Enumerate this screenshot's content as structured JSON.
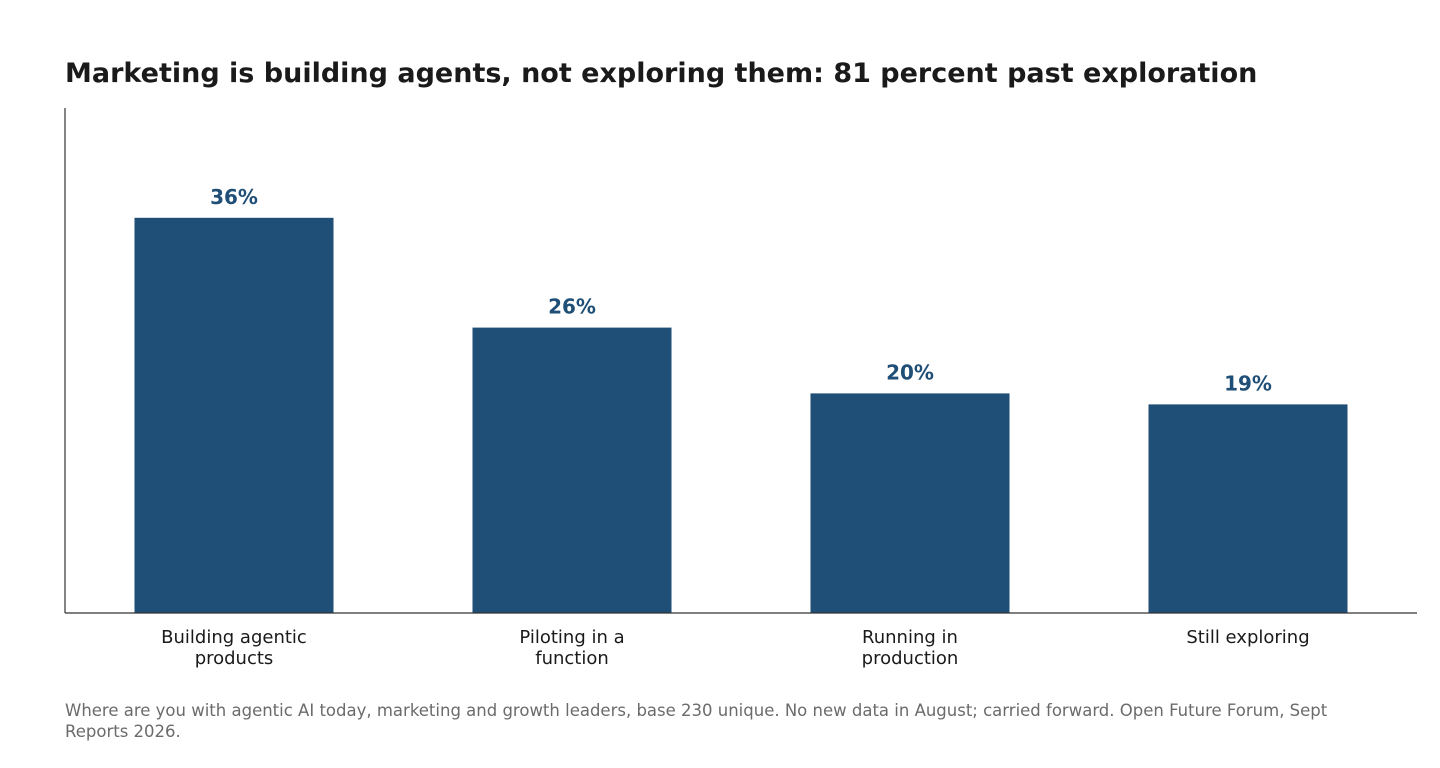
{
  "title": "Marketing is building agents, not exploring them: 81 percent past exploration",
  "footnote": "Where are you with agentic AI today, marketing and growth leaders, base 230 unique. No new data in August; carried forward. Open Future Forum, Sept Reports 2026.",
  "colors": {
    "bar": "#1f4e76",
    "axis": "#333333",
    "title": "#1a1a1a",
    "footnote": "#6b6b6b"
  },
  "chart_data": {
    "type": "bar",
    "title": "Marketing is building agents, not exploring them: 81 percent past exploration",
    "categories": [
      [
        "Building agentic",
        "products"
      ],
      [
        "Piloting in a",
        "function"
      ],
      [
        "Running in",
        "production"
      ],
      [
        "Still exploring"
      ]
    ],
    "values": [
      36,
      26,
      20,
      19
    ],
    "value_labels": [
      "36%",
      "26%",
      "20%",
      "19%"
    ],
    "ylim": [
      0,
      46
    ],
    "xlabel": "",
    "ylabel": "",
    "grid": false,
    "legend": "none"
  }
}
